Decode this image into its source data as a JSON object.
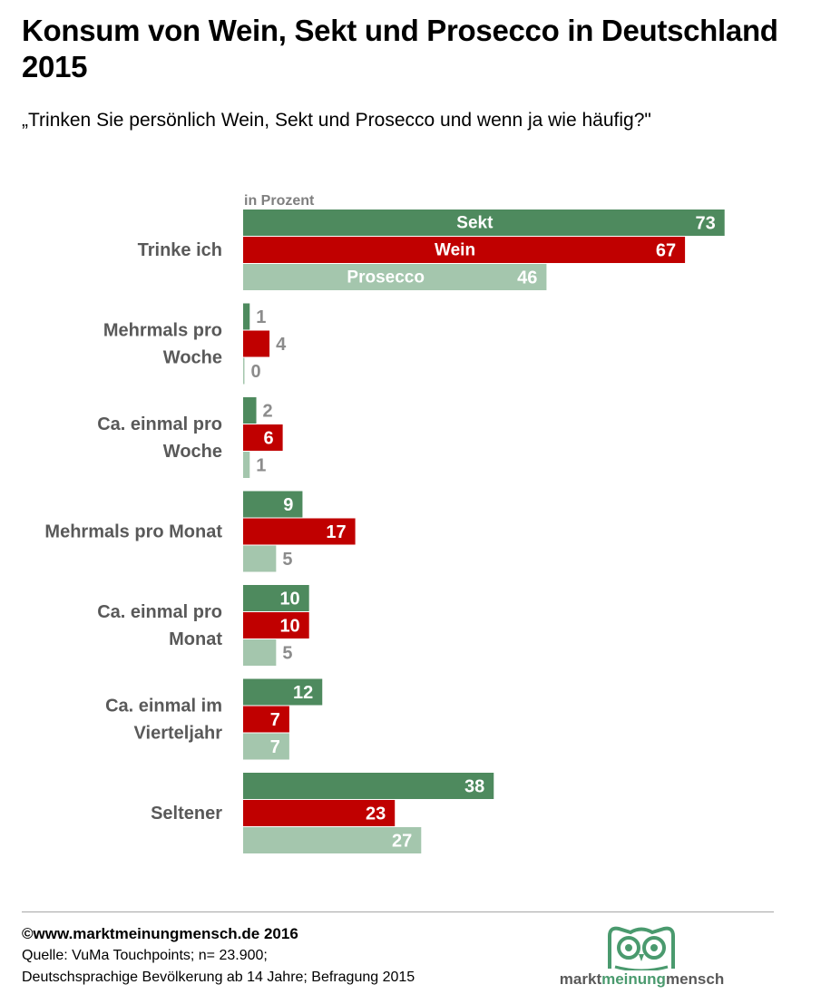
{
  "header": {
    "title": "Konsum von Wein, Sekt und Prosecco in Deutschland 2015",
    "subtitle": "„Trinken Sie persönlich Wein, Sekt und Prosecco und wenn ja wie häufig?\""
  },
  "chart_data": {
    "type": "bar",
    "orientation": "horizontal",
    "unit_label": "in Prozent",
    "categories": [
      [
        "Trinke ich"
      ],
      [
        "Mehrmals pro",
        "Woche"
      ],
      [
        "Ca. einmal pro",
        "Woche"
      ],
      [
        "Mehrmals pro Monat"
      ],
      [
        "Ca. einmal pro",
        "Monat"
      ],
      [
        "Ca. einmal im",
        "Vierteljahr"
      ],
      [
        "Seltener"
      ]
    ],
    "series": [
      {
        "name": "Sekt",
        "color": "#4e8a5e",
        "values": [
          73,
          1,
          2,
          9,
          10,
          12,
          38
        ]
      },
      {
        "name": "Wein",
        "color": "#c00000",
        "values": [
          67,
          4,
          6,
          17,
          10,
          7,
          23
        ]
      },
      {
        "name": "Prosecco",
        "color": "#a4c6ad",
        "values": [
          46,
          0,
          1,
          5,
          5,
          7,
          27
        ]
      }
    ],
    "legend": "inside-first-group",
    "grid": false
  },
  "footer": {
    "copyright": "©www.marktmeinungmensch.de 2016",
    "source": "Quelle: VuMa Touchpoints; n= 23.900;",
    "population": "Deutschsprachige Bevölkerung ab 14 Jahre; Befragung 2015"
  },
  "logo": {
    "part1": "markt",
    "part2": "meinung",
    "part3": "mensch",
    "icon": "owl-icon"
  }
}
